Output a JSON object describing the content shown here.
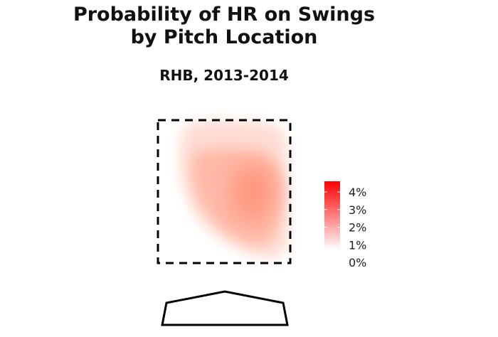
{
  "chart_data": {
    "type": "heatmap",
    "title_lines": [
      "Probability of HR on Swings",
      "by Pitch Location"
    ],
    "subtitle": "RHB, 2013-2014",
    "xlabel": "",
    "ylabel": "",
    "metric": "Probability of HR on swings",
    "peak_location": "middle-right of strike zone",
    "peak_value_pct": 3.0,
    "colorbar": {
      "position": "right",
      "range_pct": [
        0,
        4.5
      ],
      "ticks": [
        "4%",
        "3%",
        "2%",
        "1%",
        "0%"
      ],
      "tick_values": [
        4,
        3,
        2,
        1,
        0
      ],
      "color_low": "#ffffff",
      "color_high": "#ff0000"
    },
    "strike_zone": {
      "style": "dashed",
      "color": "#000000"
    },
    "home_plate": {
      "shown": true
    }
  }
}
